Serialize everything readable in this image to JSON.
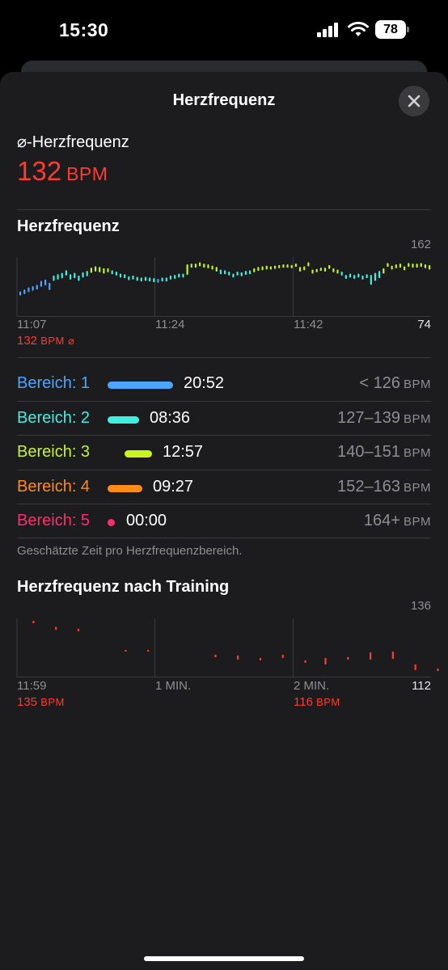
{
  "status_bar": {
    "time": "15:30",
    "battery": "78"
  },
  "sheet": {
    "title": "Herzfrequenz"
  },
  "average": {
    "label": "⌀-Herzfrequenz",
    "value": "132",
    "unit": "BPM"
  },
  "hr_chart": {
    "title": "Herzfrequenz",
    "y_max_label": "162",
    "y_min_label": "74",
    "x_labels": [
      "11:07",
      "11:24",
      "11:42"
    ],
    "avg_value": "132",
    "avg_unit": "BPM",
    "avg_symbol": "⌀"
  },
  "zones": [
    {
      "label": "Bereich: 1",
      "time": "20:52",
      "range": "< 126",
      "unit": "BPM",
      "color": "#4ca6ff"
    },
    {
      "label": "Bereich: 2",
      "time": "08:36",
      "range": "127–139",
      "unit": "BPM",
      "color": "#3ff0e0"
    },
    {
      "label": "Bereich: 3",
      "time": "12:57",
      "range": "140–151",
      "unit": "BPM",
      "color": "#c8f51e"
    },
    {
      "label": "Bereich: 4",
      "time": "09:27",
      "range": "152–163",
      "unit": "BPM",
      "color": "#ff8c1a"
    },
    {
      "label": "Bereich: 5",
      "time": "00:00",
      "range": "164+",
      "unit": "BPM",
      "color": "#ff2d6f"
    }
  ],
  "zones_note": "Geschätzte Zeit pro Herzfrequenzbereich.",
  "recovery_chart": {
    "title": "Herzfrequenz nach Training",
    "y_max_label": "136",
    "y_min_label": "112",
    "x_labels": [
      "11:59",
      "1 MIN.",
      "2 MIN."
    ],
    "start_value": "135",
    "end_value": "116",
    "unit": "BPM"
  },
  "colors": {
    "accent_red": "#ff3b30",
    "background": "#1c1c1e",
    "zone1": "#4ca6ff",
    "zone2": "#3ff0e0",
    "zone3": "#c8f51e",
    "zone4": "#ff8c1a",
    "zone5": "#ff2d6f"
  },
  "chart_data": [
    {
      "type": "bar",
      "title": "Herzfrequenz",
      "ylim": [
        74,
        162
      ],
      "x_range": [
        "11:07",
        "11:59"
      ],
      "series": [
        {
          "values": [
            [
              104,
              110
            ],
            [
              106,
              113
            ],
            [
              109,
              116
            ],
            [
              111,
              118
            ],
            [
              113,
              120
            ],
            [
              117,
              126
            ],
            [
              119,
              128
            ],
            [
              112,
              123
            ],
            [
              126,
              134
            ],
            [
              128,
              136
            ],
            [
              130,
              138
            ],
            [
              134,
              142
            ],
            [
              128,
              136
            ],
            [
              130,
              138
            ],
            [
              126,
              134
            ],
            [
              131,
              139
            ],
            [
              133,
              141
            ],
            [
              138,
              146
            ],
            [
              140,
              148
            ],
            [
              139,
              147
            ],
            [
              137,
              145
            ],
            [
              139,
              145
            ],
            [
              136,
              142
            ],
            [
              134,
              140
            ],
            [
              131,
              137
            ],
            [
              130,
              136
            ],
            [
              127,
              133
            ],
            [
              128,
              134
            ],
            [
              126,
              132
            ],
            [
              125,
              131
            ],
            [
              126,
              132
            ],
            [
              125,
              131
            ],
            [
              124,
              130
            ],
            [
              123,
              129
            ],
            [
              125,
              131
            ],
            [
              125,
              131
            ],
            [
              128,
              134
            ],
            [
              129,
              135
            ],
            [
              131,
              137
            ],
            [
              131,
              137
            ],
            [
              135,
              151
            ],
            [
              146,
              152
            ],
            [
              146,
              152
            ],
            [
              148,
              154
            ],
            [
              146,
              152
            ],
            [
              145,
              151
            ],
            [
              143,
              149
            ],
            [
              140,
              147
            ],
            [
              136,
              143
            ],
            [
              136,
              142
            ],
            [
              134,
              140
            ],
            [
              131,
              137
            ],
            [
              134,
              140
            ],
            [
              133,
              139
            ],
            [
              135,
              141
            ],
            [
              136,
              142
            ],
            [
              139,
              145
            ],
            [
              141,
              147
            ],
            [
              142,
              148
            ],
            [
              143,
              149
            ],
            [
              143,
              148
            ],
            [
              144,
              149
            ],
            [
              145,
              150
            ],
            [
              146,
              151
            ],
            [
              146,
              151
            ],
            [
              145,
              150
            ],
            [
              147,
              152
            ],
            [
              140,
              147
            ],
            [
              142,
              148
            ],
            [
              148,
              154
            ],
            [
              137,
              143
            ],
            [
              139,
              144
            ],
            [
              141,
              146
            ],
            [
              140,
              146
            ],
            [
              144,
              150
            ],
            [
              139,
              145
            ],
            [
              137,
              143
            ],
            [
              134,
              140
            ],
            [
              129,
              135
            ],
            [
              131,
              137
            ],
            [
              129,
              135
            ],
            [
              131,
              137
            ],
            [
              128,
              134
            ],
            [
              130,
              136
            ],
            [
              120,
              135
            ],
            [
              126,
              138
            ],
            [
              130,
              141
            ],
            [
              137,
              145
            ],
            [
              147,
              153
            ],
            [
              143,
              149
            ],
            [
              145,
              151
            ],
            [
              146,
              152
            ],
            [
              142,
              148
            ],
            [
              147,
              153
            ],
            [
              146,
              152
            ],
            [
              146,
              152
            ],
            [
              147,
              153
            ],
            [
              145,
              151
            ],
            [
              143,
              150
            ]
          ]
        }
      ]
    },
    {
      "type": "bar",
      "title": "Herzfrequenz nach Training",
      "ylim": [
        112,
        136
      ],
      "x_labels": [
        "11:59",
        "1 MIN.",
        "2 MIN."
      ],
      "series": [
        {
          "values": [
            [
              134.0,
              135.0
            ],
            [
              131.3,
              132.5
            ],
            [
              130.7,
              131.7
            ],
            [
              122.3,
              123.0
            ],
            [
              122.3,
              123.0
            ],
            [
              120.0,
              121.0
            ],
            [
              119.0,
              120.7
            ],
            [
              118.7,
              119.7
            ],
            [
              119.7,
              121.0
            ],
            [
              117.7,
              118.7
            ],
            [
              117.0,
              119.7
            ],
            [
              119.0,
              120.0
            ],
            [
              119.0,
              122.0
            ],
            [
              119.3,
              122.3
            ],
            [
              114.7,
              117.0
            ],
            [
              114.3,
              115.3
            ]
          ],
          "x_seconds": [
            3,
            13,
            23,
            44,
            54,
            84,
            94,
            104,
            114,
            124,
            133,
            143,
            153,
            163,
            173,
            183
          ]
        }
      ]
    }
  ]
}
